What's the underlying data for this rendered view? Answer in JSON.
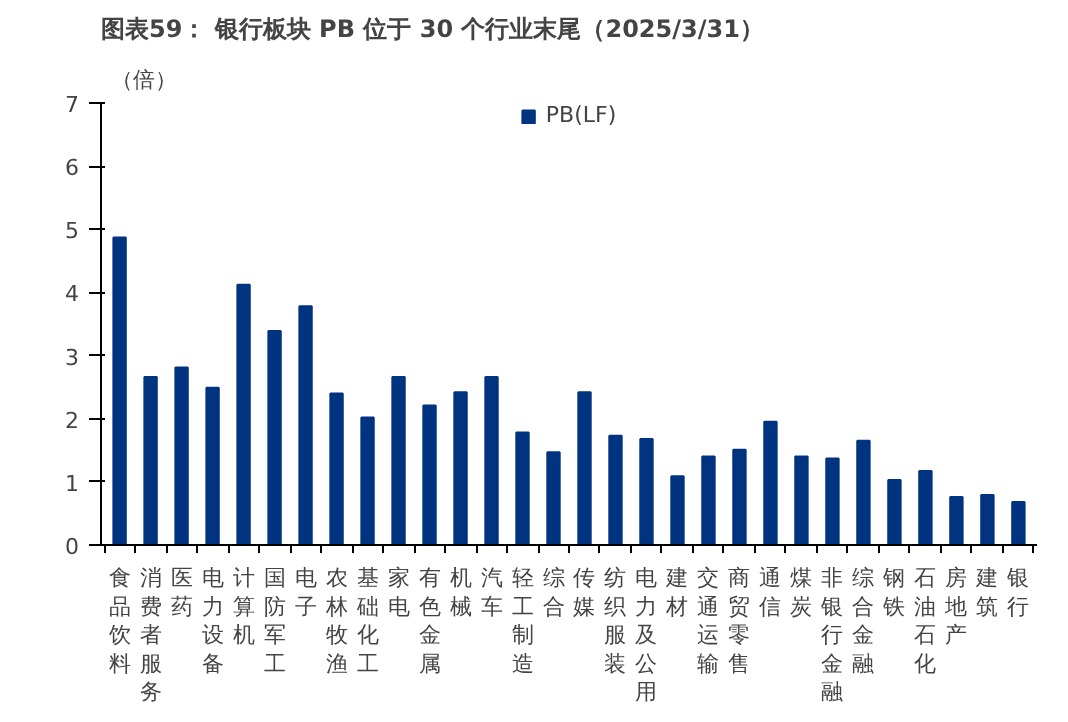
{
  "chart_data": {
    "type": "bar",
    "title": "图表59：  银行板块 PB 位于 30 个行业末尾（2025/3/31）",
    "ylabel": "（倍）",
    "categories": [
      "食品饮料",
      "消费者服务",
      "医药",
      "电力设备",
      "计算机",
      "国防军工",
      "电子",
      "农林牧渔",
      "基础化工",
      "家电",
      "有色金属",
      "机械",
      "汽车",
      "轻工制造",
      "综合",
      "传媒",
      "纺织服装",
      "电力及公用",
      "建材",
      "交通运输",
      "商贸零售",
      "通信",
      "煤炭",
      "非银行金融",
      "综合金融",
      "钢铁",
      "石油石化",
      "房地产",
      "建筑",
      "银行"
    ],
    "series": [
      {
        "name": "PB(LF)",
        "color": "#003380",
        "values": [
          4.87,
          2.66,
          2.81,
          2.49,
          4.12,
          3.39,
          3.78,
          2.4,
          2.02,
          2.66,
          2.21,
          2.42,
          2.66,
          1.78,
          1.47,
          2.42,
          1.73,
          1.68,
          1.09,
          1.4,
          1.51,
          1.95,
          1.4,
          1.37,
          1.65,
          1.03,
          1.17,
          0.76,
          0.79,
          0.68
        ]
      }
    ],
    "ylim": [
      0,
      7
    ],
    "yticks": [
      0,
      1,
      2,
      3,
      4,
      5,
      6,
      7
    ],
    "grid": false,
    "legend": "top"
  }
}
